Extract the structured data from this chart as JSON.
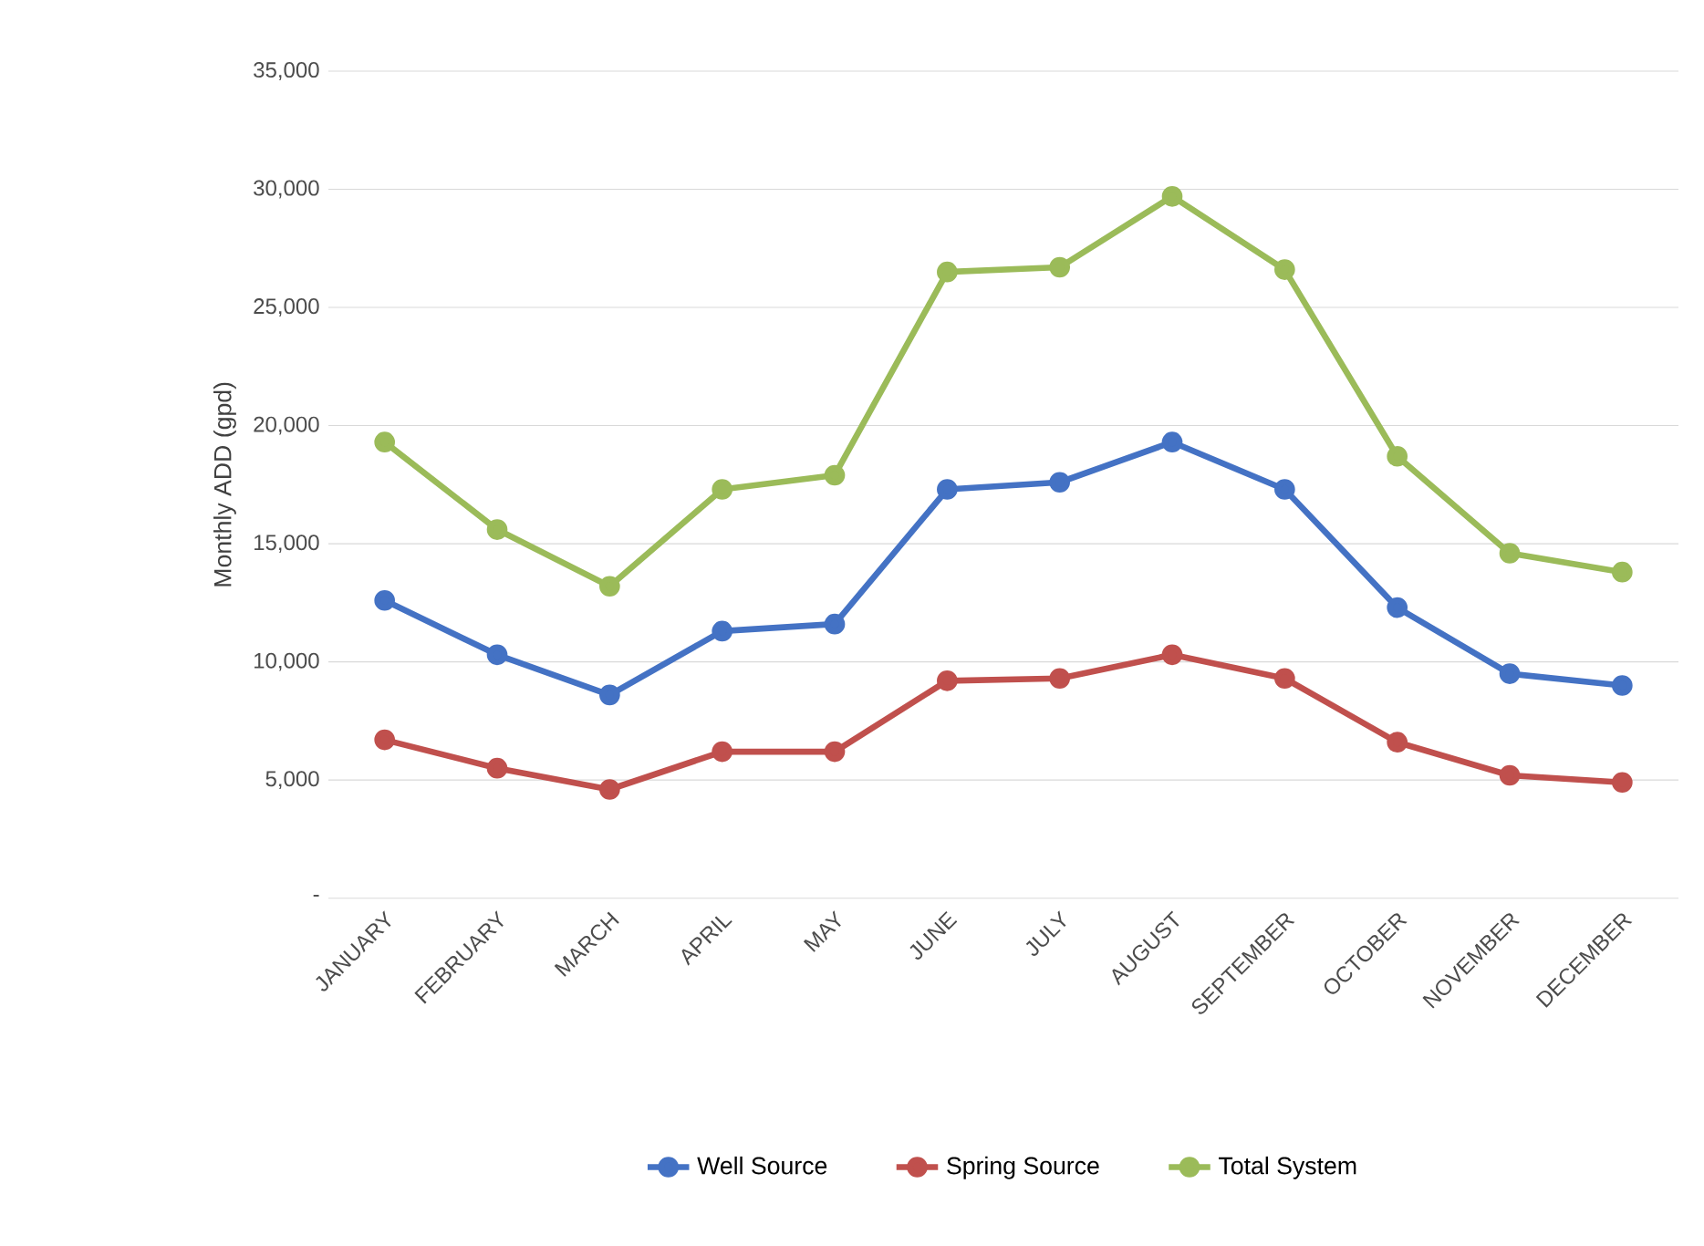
{
  "chart_data": {
    "type": "line",
    "ylabel": "Monthly ADD (gpd)",
    "categories": [
      "JANUARY",
      "FEBRUARY",
      "MARCH",
      "APRIL",
      "MAY",
      "JUNE",
      "JULY",
      "AUGUST",
      "SEPTEMBER",
      "OCTOBER",
      "NOVEMBER",
      "DECEMBER"
    ],
    "series": [
      {
        "name": "Well Source",
        "color": "#4472c4",
        "values": [
          12600,
          10300,
          8600,
          11300,
          11600,
          17300,
          17600,
          19300,
          17300,
          12300,
          9500,
          9000
        ]
      },
      {
        "name": "Spring Source",
        "color": "#c0504d",
        "values": [
          6700,
          5500,
          4600,
          6200,
          6200,
          9200,
          9300,
          10300,
          9300,
          6600,
          5200,
          4900
        ]
      },
      {
        "name": "Total System",
        "color": "#9bbb59",
        "values": [
          19300,
          15600,
          13200,
          17300,
          17900,
          26500,
          26700,
          29700,
          26600,
          18700,
          14600,
          13800
        ]
      }
    ],
    "ylim": [
      0,
      35000
    ],
    "yticks": [
      {
        "value": 0,
        "label": "-"
      },
      {
        "value": 5000,
        "label": "5,000"
      },
      {
        "value": 10000,
        "label": "10,000"
      },
      {
        "value": 15000,
        "label": "15,000"
      },
      {
        "value": 20000,
        "label": "20,000"
      },
      {
        "value": 25000,
        "label": "25,000"
      },
      {
        "value": 30000,
        "label": "30,000"
      },
      {
        "value": 35000,
        "label": "35,000"
      }
    ],
    "grid": "y",
    "legend": "bottom",
    "marker": "circle",
    "line_style": "solid"
  }
}
